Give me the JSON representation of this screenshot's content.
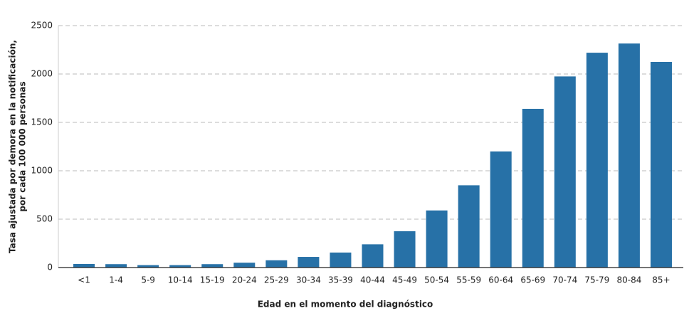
{
  "chart_data": {
    "type": "bar",
    "y_label": [
      "Tasa ajustada por demora en la notificación,",
      "por cada 100 000 personas"
    ],
    "x_label": "Edad en el momento del diagnóstico",
    "categories": [
      "<1",
      "1-4",
      "5-9",
      "10-14",
      "15-19",
      "20-24",
      "25-29",
      "30-34",
      "35-39",
      "40-44",
      "45-49",
      "50-54",
      "55-59",
      "60-64",
      "65-69",
      "70-74",
      "75-79",
      "80-84",
      "85+"
    ],
    "values": [
      37,
      35,
      25,
      25,
      35,
      50,
      75,
      110,
      155,
      240,
      375,
      590,
      850,
      1200,
      1640,
      1975,
      2220,
      2315,
      2125
    ],
    "color": "#2771a7",
    "ylim": [
      0,
      2500
    ],
    "yticks": [
      0,
      500,
      1000,
      1500,
      2000,
      2500
    ],
    "grid": true
  }
}
